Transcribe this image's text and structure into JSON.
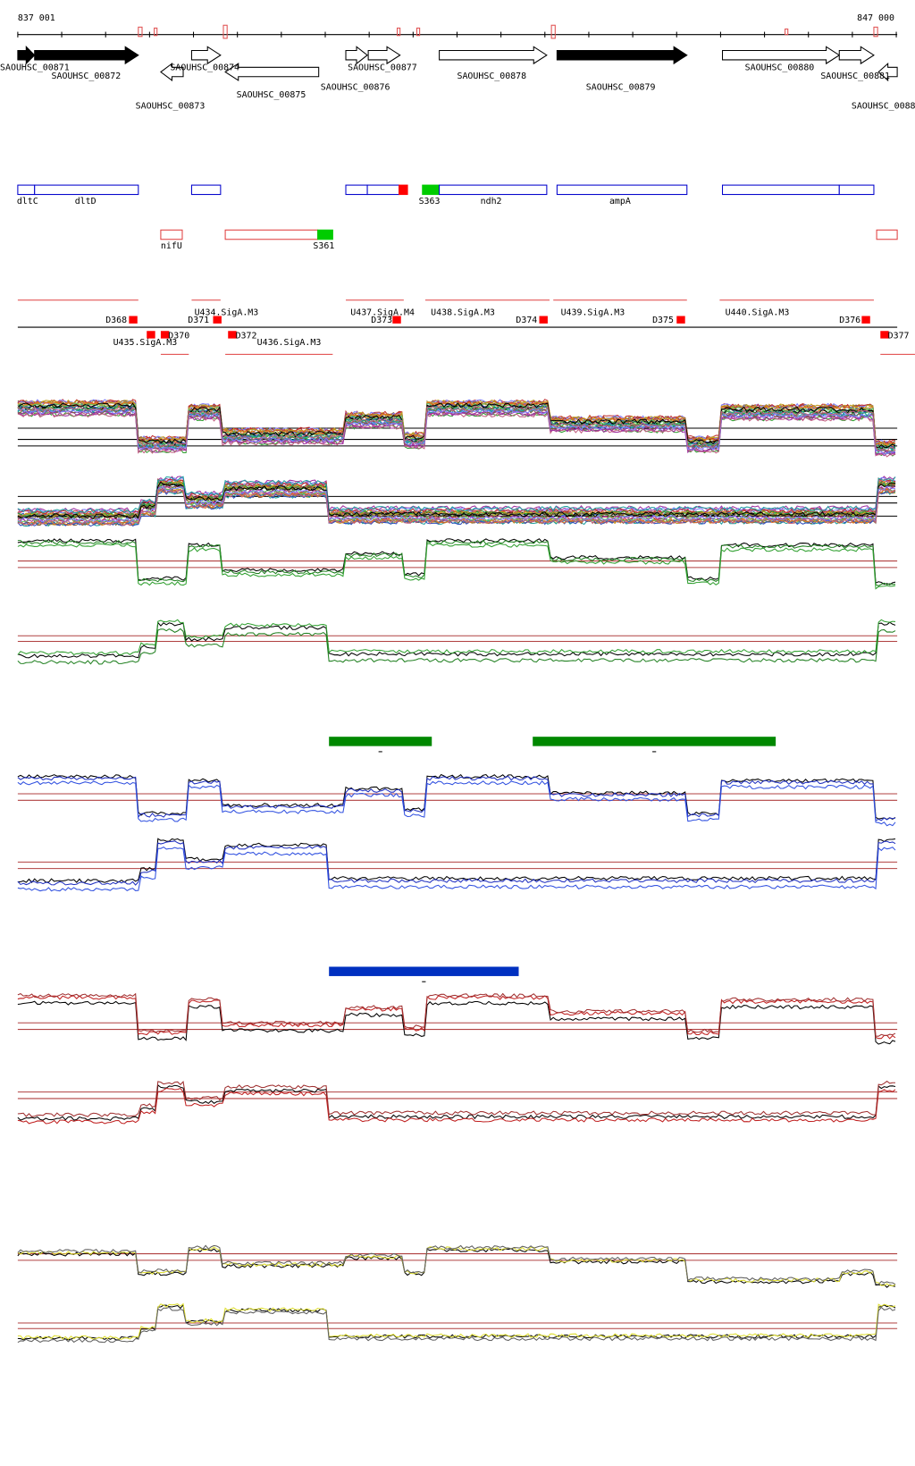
{
  "ruler": {
    "start": "837 001",
    "end": "847 000"
  },
  "genes": [
    "SAOUHSC_00871",
    "SAOUHSC_00872",
    "SAOUHSC_00873",
    "SAOUHSC_00874",
    "SAOUHSC_00875",
    "SAOUHSC_00876",
    "SAOUHSC_00877",
    "SAOUHSC_00878",
    "SAOUHSC_00879",
    "SAOUHSC_00880",
    "SAOUHSC_00881",
    "SAOUHSC_0088"
  ],
  "annotations": [
    "dltC",
    "dltD",
    "S363",
    "ndh2",
    "ampA"
  ],
  "annotations2": [
    "nifU",
    "S361"
  ],
  "segments": [
    "D368",
    "U434.SigA.M3",
    "D371",
    "D370",
    "U435.SigA.M3",
    "D372",
    "U436.SigA.M3",
    "U437.SigA.M4",
    "D373",
    "U438.SigA.M3",
    "D374",
    "U439.SigA.M3",
    "D375",
    "U440.SigA.M3",
    "D376",
    "D377"
  ]
}
